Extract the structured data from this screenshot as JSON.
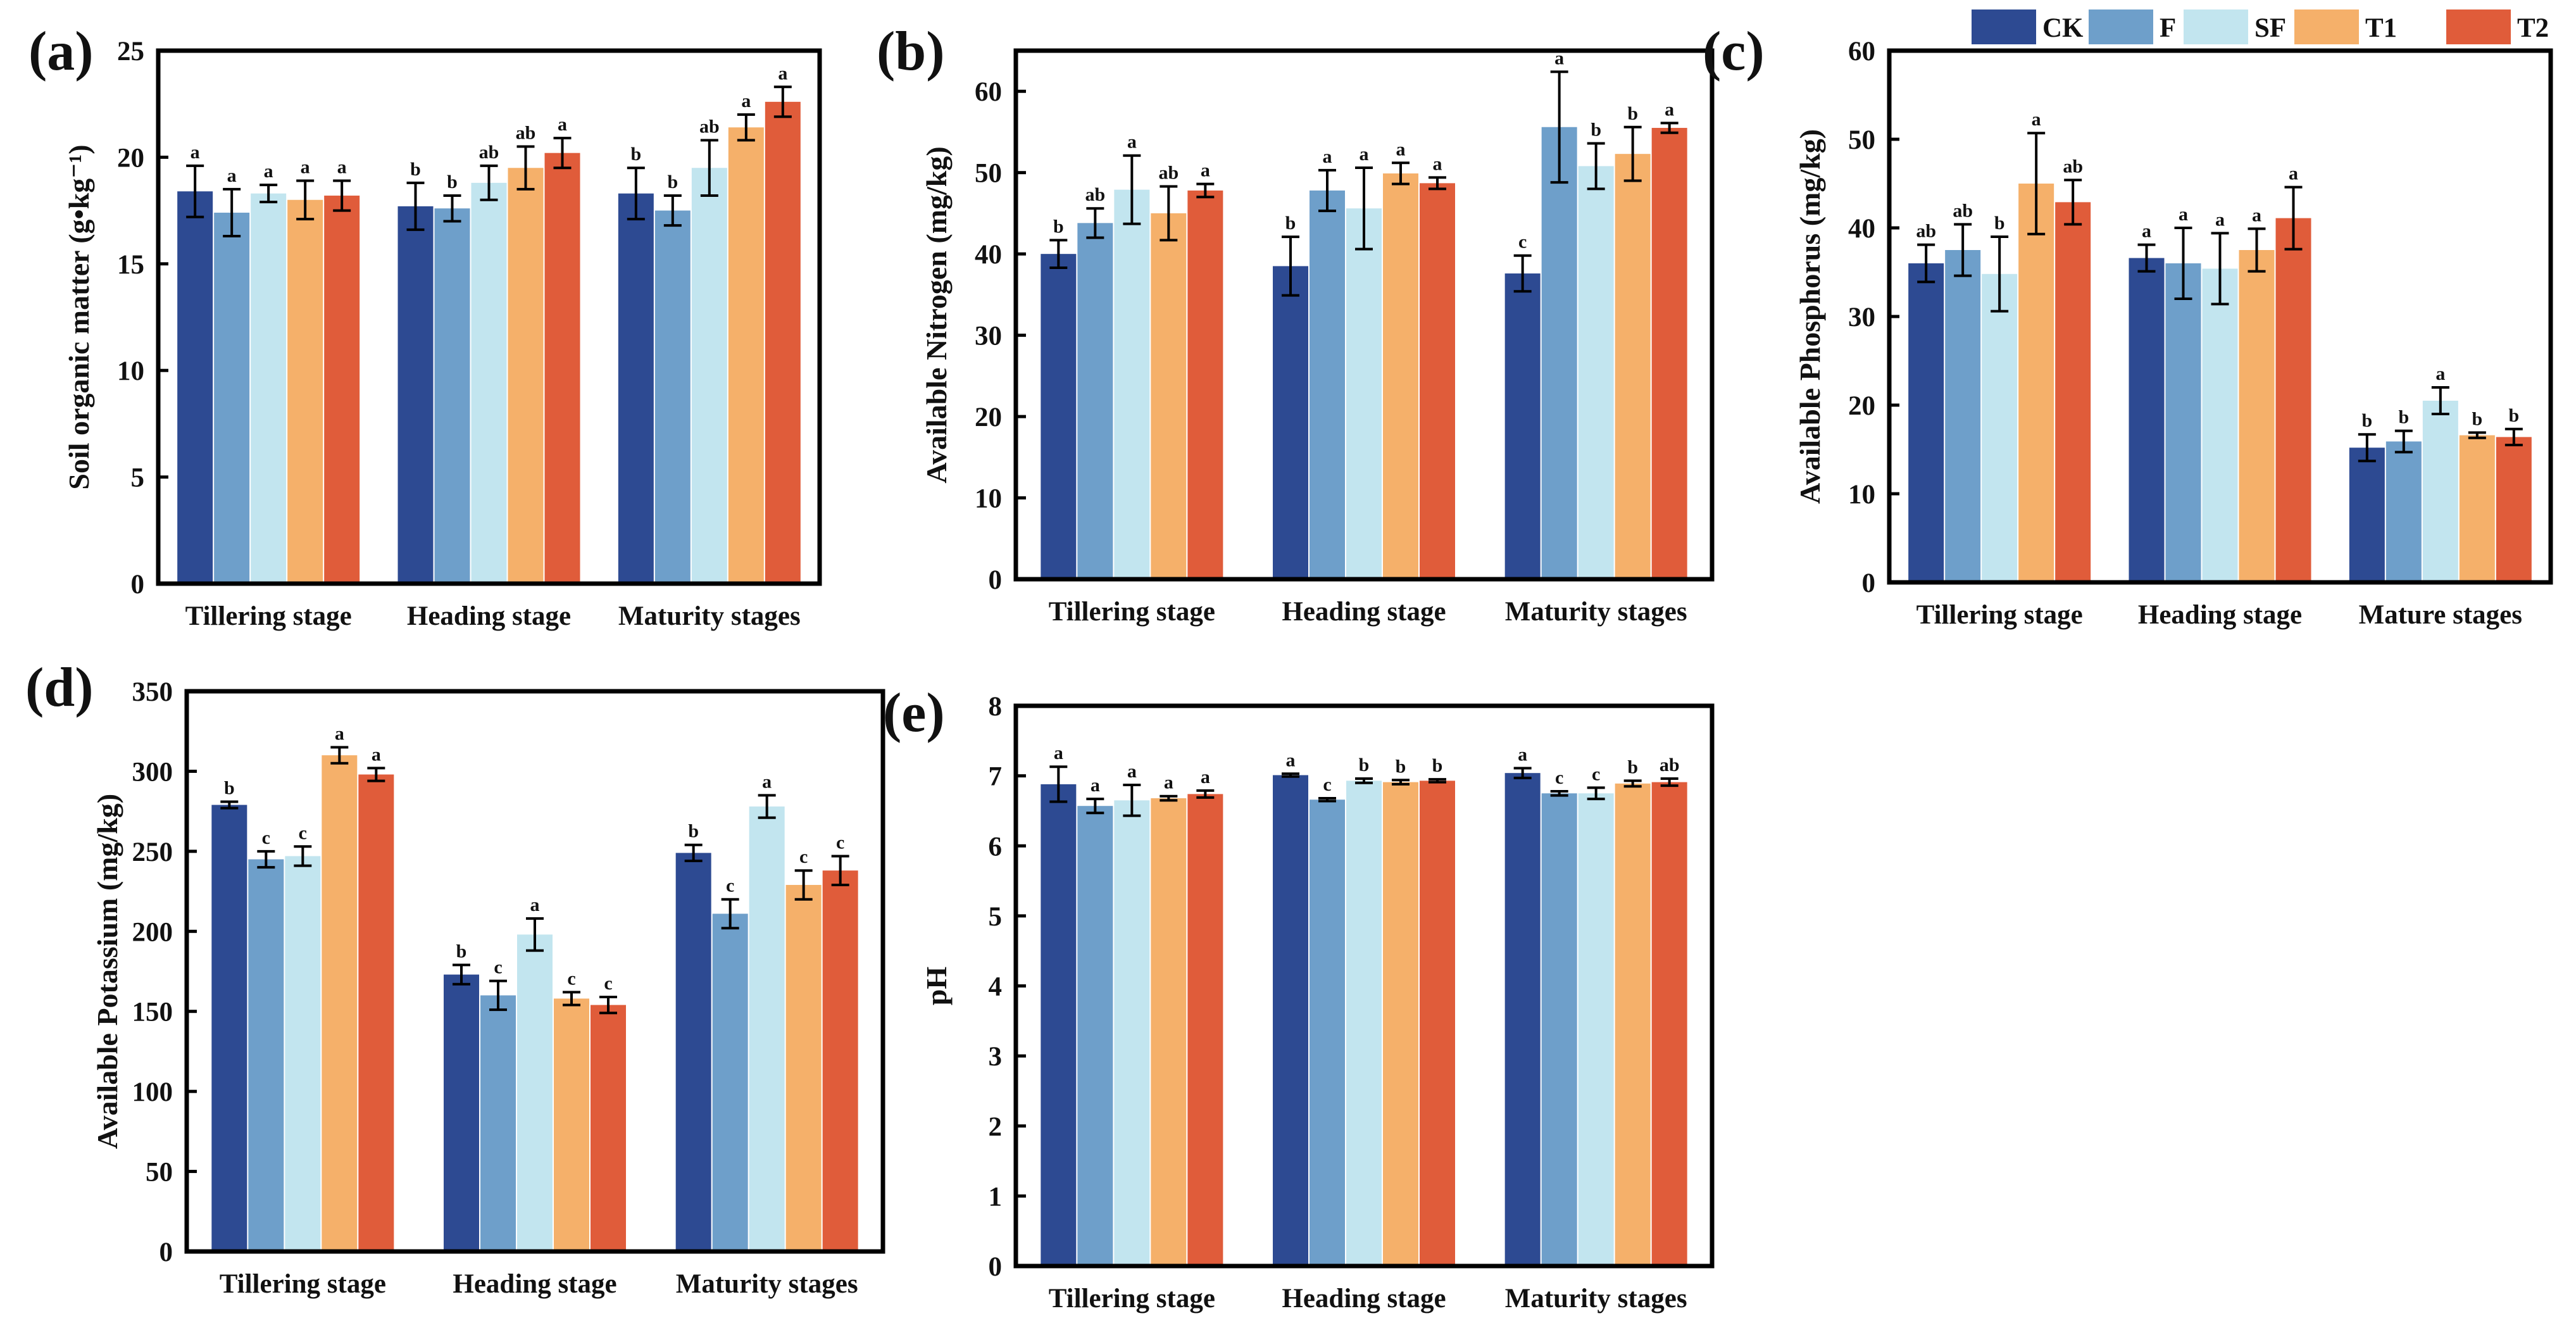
{
  "legend": [
    {
      "name": "CK",
      "color": "#2d4a92"
    },
    {
      "name": "F",
      "color": "#6e9fca"
    },
    {
      "name": "SF",
      "color": "#c2e5ef"
    },
    {
      "name": "T1",
      "color": "#f5b06a"
    },
    {
      "name": "T2",
      "color": "#e05c3a"
    }
  ],
  "chart_data": [
    {
      "panel": "(a)",
      "type": "bar",
      "ylabel": "Soil organic matter (g•kg⁻¹)",
      "xlabel": "",
      "ylim": [
        0,
        25
      ],
      "yticks": [
        0,
        5,
        10,
        15,
        20,
        25
      ],
      "categories": [
        "Tillering stage",
        "Heading stage",
        "Maturity stages"
      ],
      "series": [
        {
          "name": "CK",
          "values": [
            18.4,
            17.7,
            18.3
          ],
          "errors": [
            1.2,
            1.1,
            1.2
          ],
          "letters": [
            "a",
            "b",
            "b"
          ]
        },
        {
          "name": "F",
          "values": [
            17.4,
            17.6,
            17.5
          ],
          "errors": [
            1.1,
            0.6,
            0.7
          ],
          "letters": [
            "a",
            "b",
            "b"
          ]
        },
        {
          "name": "SF",
          "values": [
            18.3,
            18.8,
            19.5
          ],
          "errors": [
            0.4,
            0.8,
            1.3
          ],
          "letters": [
            "a",
            "ab",
            "ab"
          ]
        },
        {
          "name": "T1",
          "values": [
            18.0,
            19.5,
            21.4
          ],
          "errors": [
            0.9,
            1.0,
            0.6
          ],
          "letters": [
            "a",
            "ab",
            "a"
          ]
        },
        {
          "name": "T2",
          "values": [
            18.2,
            20.2,
            22.6
          ],
          "errors": [
            0.7,
            0.7,
            0.7
          ],
          "letters": [
            "a",
            "a",
            "a"
          ]
        }
      ]
    },
    {
      "panel": "(b)",
      "type": "bar",
      "ylabel": "Available Nitrogen (mg/kg)",
      "xlabel": "",
      "ylim": [
        0,
        65
      ],
      "yticks": [
        0,
        10,
        20,
        30,
        40,
        50,
        60
      ],
      "categories": [
        "Tillering stage",
        "Heading stage",
        "Maturity stages"
      ],
      "series": [
        {
          "name": "CK",
          "values": [
            40.0,
            38.5,
            37.6
          ],
          "errors": [
            1.7,
            3.6,
            2.2
          ],
          "letters": [
            "b",
            "b",
            "c"
          ]
        },
        {
          "name": "F",
          "values": [
            43.8,
            47.8,
            55.6
          ],
          "errors": [
            1.8,
            2.5,
            6.8
          ],
          "letters": [
            "ab",
            "a",
            "a"
          ]
        },
        {
          "name": "SF",
          "values": [
            47.9,
            45.6,
            50.8
          ],
          "errors": [
            4.2,
            5.0,
            2.8
          ],
          "letters": [
            "a",
            "a",
            "b"
          ]
        },
        {
          "name": "T1",
          "values": [
            45.0,
            49.9,
            52.3
          ],
          "errors": [
            3.3,
            1.3,
            3.3
          ],
          "letters": [
            "ab",
            "a",
            "b"
          ]
        },
        {
          "name": "T2",
          "values": [
            47.8,
            48.7,
            55.5
          ],
          "errors": [
            0.8,
            0.7,
            0.6
          ],
          "letters": [
            "a",
            "a",
            "a"
          ]
        }
      ]
    },
    {
      "panel": "(c)",
      "type": "bar",
      "ylabel": "Available Phosphorus (mg/kg)",
      "xlabel": "",
      "ylim": [
        0,
        60
      ],
      "yticks": [
        0,
        10,
        20,
        30,
        40,
        50,
        60
      ],
      "categories": [
        "Tillering stage",
        "Heading stage",
        "Mature stages"
      ],
      "series": [
        {
          "name": "CK",
          "values": [
            36.0,
            36.6,
            15.2
          ],
          "errors": [
            2.1,
            1.5,
            1.5
          ],
          "letters": [
            "ab",
            "a",
            "b"
          ]
        },
        {
          "name": "F",
          "values": [
            37.5,
            36.0,
            15.9
          ],
          "errors": [
            2.9,
            4.0,
            1.2
          ],
          "letters": [
            "ab",
            "a",
            "b"
          ]
        },
        {
          "name": "SF",
          "values": [
            34.8,
            35.4,
            20.5
          ],
          "errors": [
            4.2,
            4.0,
            1.5
          ],
          "letters": [
            "b",
            "a",
            "a"
          ]
        },
        {
          "name": "T1",
          "values": [
            45.0,
            37.5,
            16.6
          ],
          "errors": [
            5.7,
            2.4,
            0.3
          ],
          "letters": [
            "a",
            "a",
            "b"
          ]
        },
        {
          "name": "T2",
          "values": [
            42.9,
            41.1,
            16.4
          ],
          "errors": [
            2.5,
            3.5,
            0.9
          ],
          "letters": [
            "ab",
            "a",
            "b"
          ]
        }
      ]
    },
    {
      "panel": "(d)",
      "type": "bar",
      "ylabel": "Available Potassium (mg/kg)",
      "xlabel": "",
      "ylim": [
        0,
        350
      ],
      "yticks": [
        0,
        50,
        100,
        150,
        200,
        250,
        300,
        350
      ],
      "categories": [
        "Tillering stage",
        "Heading stage",
        "Maturity stages"
      ],
      "series": [
        {
          "name": "CK",
          "values": [
            279,
            173,
            249
          ],
          "errors": [
            2,
            6,
            5
          ],
          "letters": [
            "b",
            "b",
            "b"
          ]
        },
        {
          "name": "F",
          "values": [
            245,
            160,
            211
          ],
          "errors": [
            5,
            9,
            9
          ],
          "letters": [
            "c",
            "c",
            "c"
          ]
        },
        {
          "name": "SF",
          "values": [
            247,
            198,
            278
          ],
          "errors": [
            6,
            10,
            7
          ],
          "letters": [
            "c",
            "a",
            "a"
          ]
        },
        {
          "name": "T1",
          "values": [
            310,
            158,
            229
          ],
          "errors": [
            5,
            4,
            9
          ],
          "letters": [
            "a",
            "c",
            "c"
          ]
        },
        {
          "name": "T2",
          "values": [
            298,
            154,
            238
          ],
          "errors": [
            4,
            5,
            9
          ],
          "letters": [
            "a",
            "c",
            "c"
          ]
        }
      ]
    },
    {
      "panel": "(e)",
      "type": "bar",
      "ylabel": "pH",
      "xlabel": "",
      "ylim": [
        0,
        8
      ],
      "yticks": [
        0,
        1,
        2,
        3,
        4,
        5,
        6,
        7,
        8
      ],
      "categories": [
        "Tillering stage",
        "Heading stage",
        "Maturity stages"
      ],
      "series": [
        {
          "name": "CK",
          "values": [
            6.88,
            7.01,
            7.04
          ],
          "errors": [
            0.25,
            0.02,
            0.07
          ],
          "letters": [
            "a",
            "a",
            "a"
          ]
        },
        {
          "name": "F",
          "values": [
            6.57,
            6.66,
            6.75
          ],
          "errors": [
            0.1,
            0.02,
            0.03
          ],
          "letters": [
            "a",
            "c",
            "c"
          ]
        },
        {
          "name": "SF",
          "values": [
            6.65,
            6.93,
            6.75
          ],
          "errors": [
            0.22,
            0.03,
            0.08
          ],
          "letters": [
            "a",
            "b",
            "c"
          ]
        },
        {
          "name": "T1",
          "values": [
            6.68,
            6.91,
            6.89
          ],
          "errors": [
            0.03,
            0.03,
            0.04
          ],
          "letters": [
            "a",
            "b",
            "b"
          ]
        },
        {
          "name": "T2",
          "values": [
            6.74,
            6.93,
            6.91
          ],
          "errors": [
            0.05,
            0.02,
            0.05
          ],
          "letters": [
            "a",
            "b",
            "ab"
          ]
        }
      ]
    }
  ]
}
